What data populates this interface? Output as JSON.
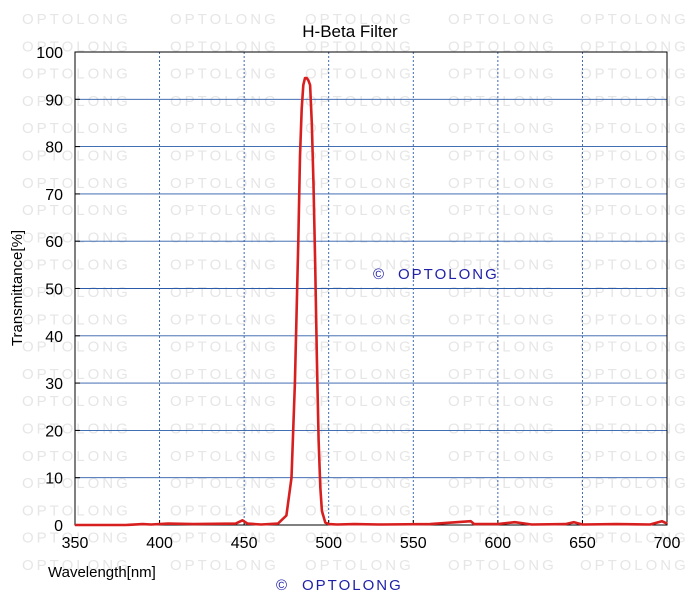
{
  "watermark_text": "OPTOLONG",
  "copyright": {
    "symbol": "©",
    "brand": "OPTOLONG",
    "color": "#1f1fa8"
  },
  "colors": {
    "curve": "#d81f1f",
    "grid_h": "#2a5aa8",
    "grid_v": "#2a5aa8"
  },
  "chart_data": {
    "type": "line",
    "title": "H-Beta Filter",
    "xlabel": "Wavelength[nm]",
    "ylabel": "Transmittance[%]",
    "xlim": [
      350,
      700
    ],
    "ylim": [
      0,
      100
    ],
    "xticks": [
      350,
      400,
      450,
      500,
      550,
      600,
      650,
      700
    ],
    "yticks": [
      0,
      10,
      20,
      30,
      40,
      50,
      60,
      70,
      80,
      90,
      100
    ],
    "grid": true,
    "series": [
      {
        "x": [
          350,
          380,
          390,
          395,
          405,
          420,
          445,
          449,
          452,
          460,
          470,
          475,
          478,
          480,
          482,
          483,
          484,
          485,
          486,
          487,
          488,
          489,
          490,
          491,
          492,
          493,
          494,
          495,
          496,
          498,
          500,
          505,
          515,
          530,
          560,
          584,
          586,
          600,
          610,
          620,
          640,
          645,
          650,
          670,
          690,
          697,
          700
        ],
        "y": [
          0,
          0,
          0.2,
          0.1,
          0.3,
          0.2,
          0.3,
          1.0,
          0.3,
          0.1,
          0.3,
          2,
          10,
          30,
          60,
          78,
          88,
          93,
          94.5,
          94.5,
          94,
          93,
          85,
          72,
          55,
          35,
          18,
          8,
          3,
          0.5,
          0.2,
          0.1,
          0.2,
          0.1,
          0.2,
          0.8,
          0.2,
          0.2,
          0.6,
          0.1,
          0.2,
          0.6,
          0.1,
          0.2,
          0.1,
          0.8,
          0.3
        ]
      }
    ]
  }
}
